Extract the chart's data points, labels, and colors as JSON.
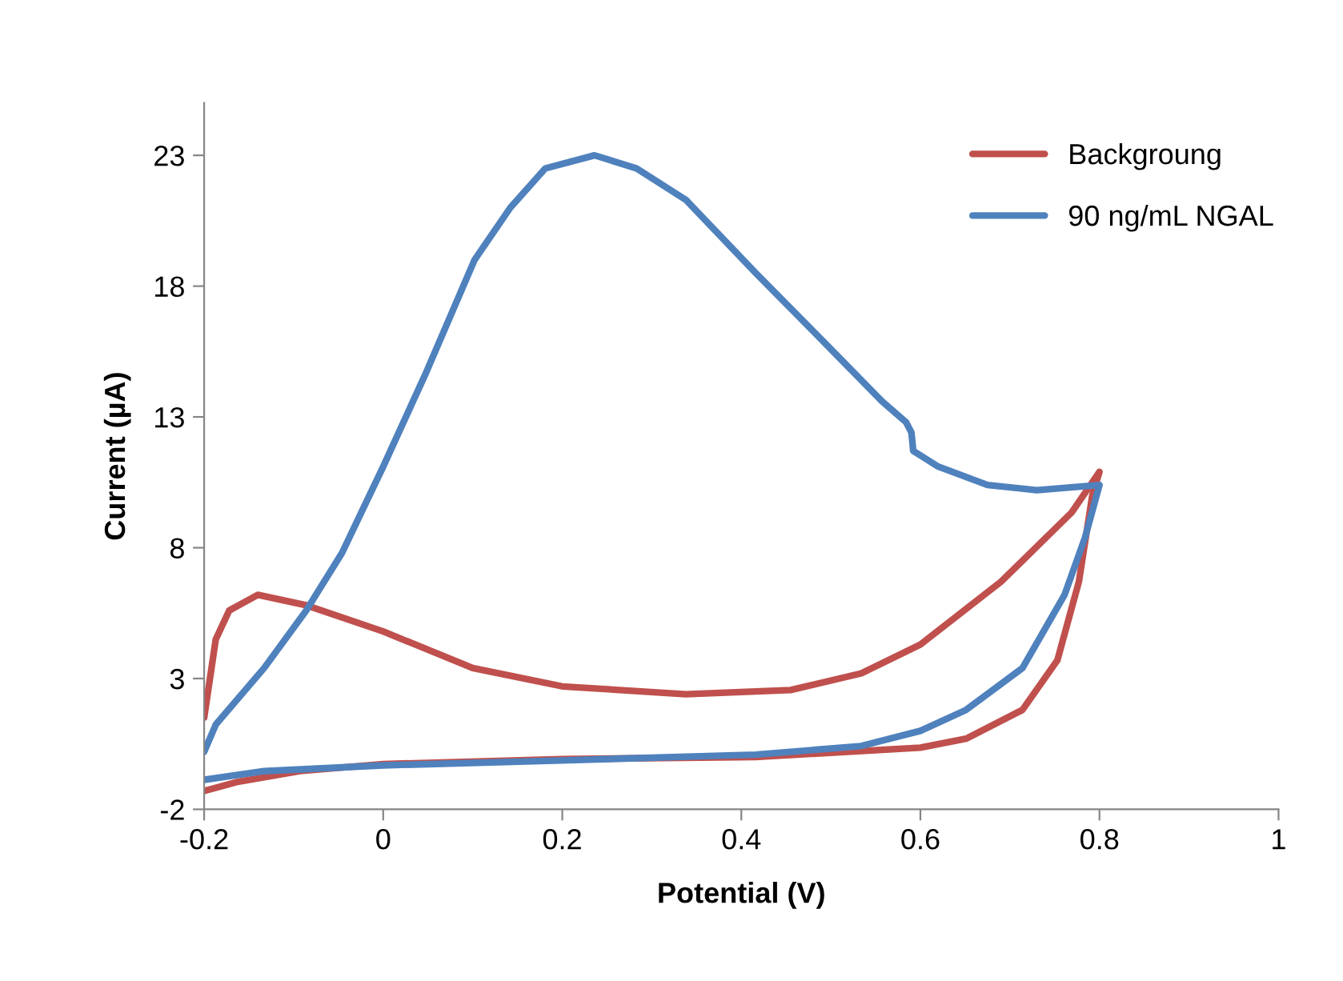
{
  "chart_data": {
    "type": "line",
    "xlabel": "Potential (V)",
    "ylabel": "Current (µA)",
    "xlim": [
      -0.2,
      1
    ],
    "xticks": [
      {
        "value": -0.2,
        "label": "-0.2"
      },
      0,
      0.2,
      0.4,
      0.6,
      0.8,
      1
    ],
    "ylim": [
      -2,
      25
    ],
    "yticks": [
      {
        "value": -2,
        "label": "-2"
      },
      3,
      8,
      13,
      18,
      23
    ],
    "grid": false,
    "legend": "top right",
    "marker": "none",
    "line_style": "solid",
    "series": [
      {
        "name": "Backgroung",
        "color": "#c0504d",
        "x": [
          -0.2,
          -0.187,
          -0.172,
          -0.14,
          -0.086,
          0,
          0.1,
          0.2,
          0.338,
          0.455,
          0.534,
          0.6,
          0.69,
          0.769,
          0.8,
          0.792,
          0.777,
          0.753,
          0.714,
          0.651,
          0.6,
          0.416,
          0.2,
          0,
          -0.093,
          -0.164,
          -0.2
        ],
        "values": [
          1.5,
          4.5,
          5.6,
          6.2,
          5.8,
          4.8,
          3.4,
          2.7,
          2.4,
          2.56,
          3.2,
          4.3,
          6.7,
          9.35,
          10.9,
          10.0,
          6.7,
          3.7,
          1.8,
          0.7,
          0.36,
          0.0,
          -0.08,
          -0.27,
          -0.54,
          -0.96,
          -1.3
        ]
      },
      {
        "name": "90 ng/mL NGAL",
        "color": "#4f81bd",
        "x": [
          -0.2,
          -0.187,
          -0.133,
          -0.086,
          -0.046,
          0,
          0.048,
          0.102,
          0.142,
          0.181,
          0.236,
          0.283,
          0.338,
          0.416,
          0.494,
          0.557,
          0.584,
          0.59,
          0.592,
          0.62,
          0.675,
          0.73,
          0.8,
          0.784,
          0.761,
          0.714,
          0.651,
          0.6,
          0.534,
          0.416,
          0.2,
          0,
          -0.133,
          -0.2
        ],
        "values": [
          0.2,
          1.24,
          3.4,
          5.6,
          7.8,
          11.1,
          14.7,
          19.0,
          21.0,
          22.5,
          23.0,
          22.5,
          21.3,
          18.5,
          15.8,
          13.6,
          12.8,
          12.4,
          11.7,
          11.1,
          10.4,
          10.2,
          10.4,
          8.4,
          6.2,
          3.4,
          1.8,
          1.0,
          0.42,
          0.09,
          -0.13,
          -0.32,
          -0.54,
          -0.87
        ]
      }
    ]
  }
}
